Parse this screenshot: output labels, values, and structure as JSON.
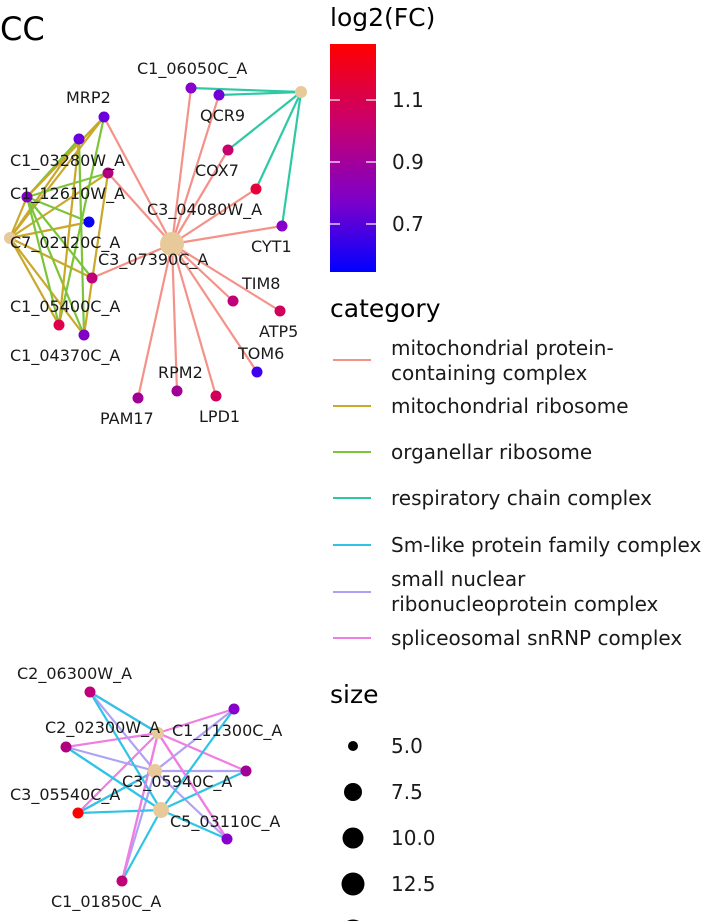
{
  "panel_title": "CC",
  "colorbar": {
    "title": "log2(FC)",
    "ticks": [
      "1.1",
      "0.9",
      "0.7"
    ],
    "gradient": [
      "#ff0000",
      "#c8006e",
      "#7a00cc",
      "#0000ff"
    ]
  },
  "category_legend": {
    "title": "category",
    "items": [
      {
        "label_lines": [
          "mitochondrial protein-",
          "containing complex"
        ],
        "color": "#f4928a"
      },
      {
        "label_lines": [
          "mitochondrial ribosome"
        ],
        "color": "#c9a82a"
      },
      {
        "label_lines": [
          "organellar ribosome"
        ],
        "color": "#7cc43a"
      },
      {
        "label_lines": [
          "respiratory chain complex"
        ],
        "color": "#2ec9a4"
      },
      {
        "label_lines": [
          "Sm-like protein family complex"
        ],
        "color": "#2fc4e6"
      },
      {
        "label_lines": [
          "small nuclear",
          "ribonucleoprotein complex"
        ],
        "color": "#b0a2f2"
      },
      {
        "label_lines": [
          "spliceosomal snRNP complex"
        ],
        "color": "#f07de2"
      }
    ]
  },
  "size_legend": {
    "title": "size",
    "items": [
      "5.0",
      "7.5",
      "10.0",
      "12.5"
    ]
  },
  "network": {
    "hub_color": "#e8c99a",
    "gene_labels": {
      "C1_06050C_A": "C1_06050C_A",
      "QCR9": "QCR9",
      "MRP2": "MRP2",
      "C1_03280W_A": "C1_03280W_A",
      "COX7": "COX7",
      "C1_12610W_A": "C1_12610W_A",
      "C3_04080W_A": "C3_04080W_A",
      "C7_02120C_A": "C7_02120C_A",
      "CYT1": "CYT1",
      "C3_07390C_A": "C3_07390C_A",
      "TIM8": "TIM8",
      "C1_05400C_A": "C1_05400C_A",
      "ATP5": "ATP5",
      "C1_04370C_A": "C1_04370C_A",
      "TOM6": "TOM6",
      "RPM2": "RPM2",
      "PAM17": "PAM17",
      "LPD1": "LPD1",
      "C2_06300W_A": "C2_06300W_A",
      "C2_02300W_A": "C2_02300W_A",
      "C1_11300C_A": "C1_11300C_A",
      "C3_05940C_A": "C3_05940C_A",
      "C3_05540C_A": "C3_05540C_A",
      "C5_03110C_A": "C5_03110C_A",
      "C1_01850C_A": "C1_01850C_A"
    }
  }
}
